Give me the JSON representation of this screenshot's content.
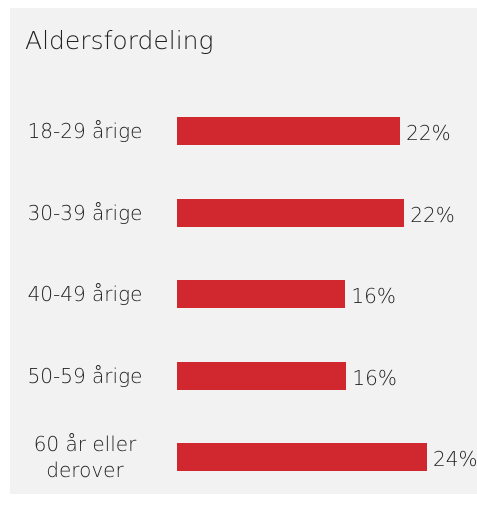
{
  "chart_data": {
    "type": "bar",
    "orientation": "horizontal",
    "title": "Aldersfordeling",
    "categories": [
      "18-29 årige",
      "30-39 årige",
      "40-49 årige",
      "50-59 årige",
      "60 år eller derover"
    ],
    "values": [
      21.6,
      22,
      16.3,
      16.4,
      24.2
    ],
    "value_labels": [
      "22%",
      "22%",
      "16%",
      "16%",
      "24%"
    ],
    "color": "#d0282e"
  }
}
